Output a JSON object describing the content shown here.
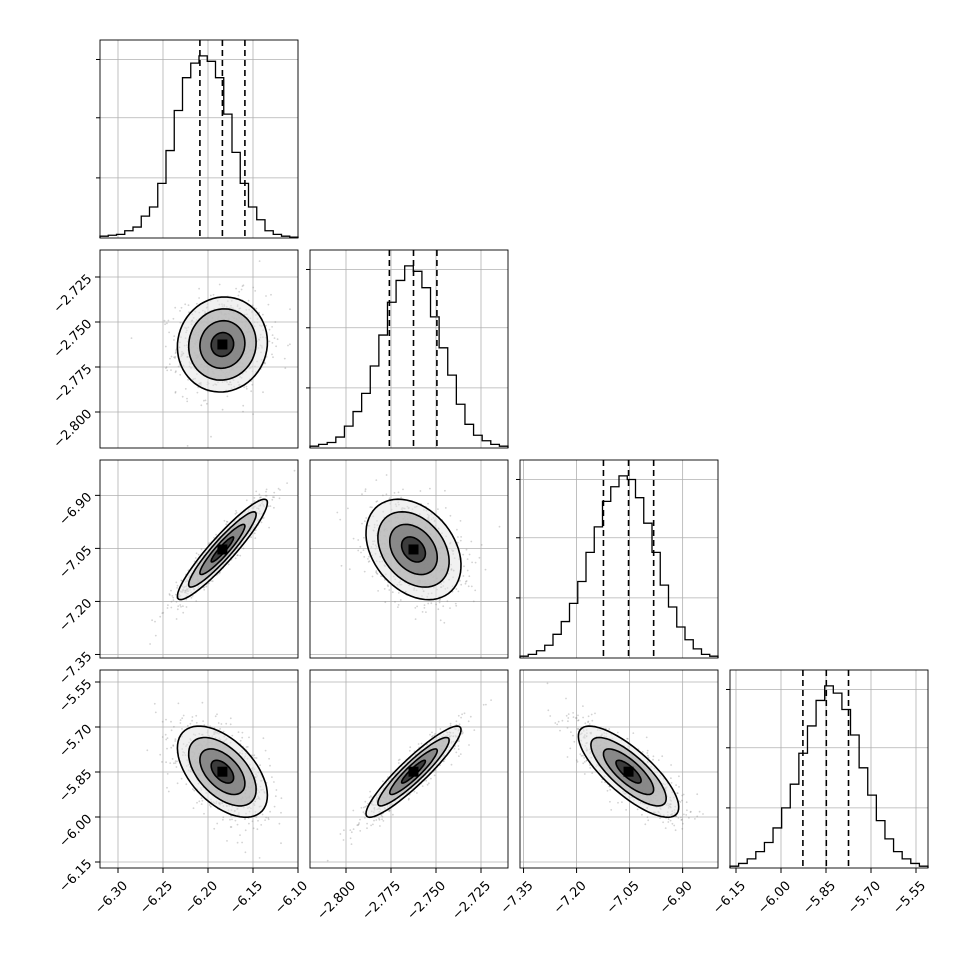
{
  "chart_data": {
    "type": "corner",
    "description_free": true,
    "colors": {
      "hist": "#000000",
      "grid": "#b0b0b0",
      "points": "#808080",
      "frame": "#000000"
    },
    "grid": true,
    "parameters": [
      {
        "range": [
          -6.32,
          -6.1
        ],
        "ticks": [
          "-6.30",
          "-6.25",
          "-6.20",
          "-6.15",
          "-6.10"
        ],
        "tick_values": [
          -6.3,
          -6.25,
          -6.2,
          -6.15,
          -6.1
        ],
        "quantiles": [
          -6.209,
          -6.184,
          -6.159
        ],
        "hist_bins": [
          0.01,
          0.015,
          0.02,
          0.04,
          0.06,
          0.12,
          0.17,
          0.3,
          0.48,
          0.7,
          0.88,
          0.96,
          1.0,
          0.97,
          0.88,
          0.68,
          0.47,
          0.3,
          0.17,
          0.1,
          0.04,
          0.02,
          0.01,
          0.005
        ]
      },
      {
        "range": [
          -2.82,
          -2.71
        ],
        "ticks": [
          "-2.800",
          "-2.775",
          "-2.750",
          "-2.725"
        ],
        "tick_values": [
          -2.8,
          -2.775,
          -2.75,
          -2.725
        ],
        "quantiles": [
          -2.7759,
          -2.7625,
          -2.7495
        ],
        "hist_bins": [
          0.01,
          0.02,
          0.03,
          0.06,
          0.12,
          0.2,
          0.3,
          0.45,
          0.62,
          0.8,
          0.92,
          1.0,
          0.97,
          0.88,
          0.72,
          0.55,
          0.4,
          0.24,
          0.13,
          0.07,
          0.04,
          0.02,
          0.01
        ]
      },
      {
        "range": [
          -7.36,
          -6.8
        ],
        "ticks": [
          "-7.35",
          "-7.20",
          "-7.05",
          "-6.90"
        ],
        "tick_values": [
          -7.35,
          -7.2,
          -7.05,
          -6.9
        ],
        "quantiles": [
          -7.124,
          -7.053,
          -6.982
        ],
        "hist_bins": [
          0.01,
          0.02,
          0.04,
          0.07,
          0.13,
          0.2,
          0.3,
          0.42,
          0.58,
          0.72,
          0.86,
          0.94,
          1.0,
          0.98,
          0.88,
          0.74,
          0.58,
          0.4,
          0.28,
          0.17,
          0.1,
          0.05,
          0.02,
          0.01
        ]
      },
      {
        "range": [
          -6.17,
          -5.51
        ],
        "ticks": [
          "-6.15",
          "-6.00",
          "-5.85",
          "-5.70",
          "-5.55"
        ],
        "tick_values": [
          -6.15,
          -6.0,
          -5.85,
          -5.7,
          -5.55
        ],
        "quantiles": [
          -5.927,
          -5.849,
          -5.775
        ],
        "hist_bins": [
          0.01,
          0.025,
          0.05,
          0.09,
          0.14,
          0.22,
          0.33,
          0.46,
          0.63,
          0.78,
          0.92,
          1.0,
          0.96,
          0.87,
          0.73,
          0.55,
          0.4,
          0.26,
          0.16,
          0.09,
          0.05,
          0.025,
          0.01
        ]
      }
    ],
    "correlations": [
      [
        1.0,
        0.05,
        0.93,
        -0.52
      ],
      [
        0.05,
        1.0,
        -0.32,
        0.92
      ],
      [
        0.93,
        -0.32,
        1.0,
        -0.78
      ],
      [
        -0.52,
        0.92,
        -0.78,
        1.0
      ]
    ],
    "contour_levels_sigma": [
      0.5,
      1.0,
      1.5,
      2.0
    ]
  }
}
